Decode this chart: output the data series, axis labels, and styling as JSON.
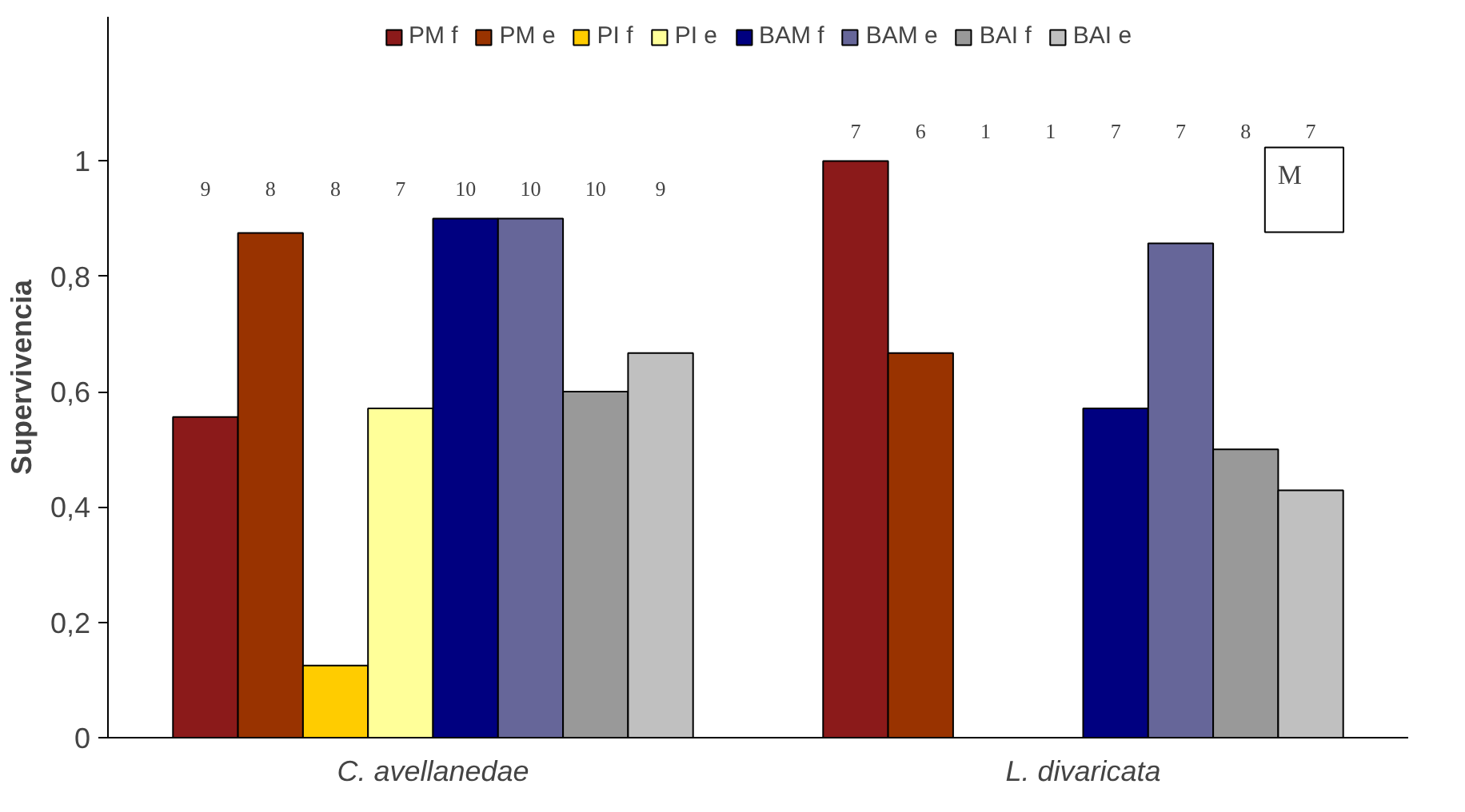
{
  "chart_data": {
    "type": "bar",
    "ylabel": "Supervivencia",
    "categories": [
      "C. avellanedae",
      "L. divaricata"
    ],
    "series": [
      {
        "name": "PM f",
        "color": "#8b1a1a",
        "values": [
          0.556,
          1.0
        ]
      },
      {
        "name": "PM e",
        "color": "#993300",
        "values": [
          0.875,
          0.667
        ]
      },
      {
        "name": "PI f",
        "color": "#ffcc00",
        "values": [
          0.125,
          null
        ]
      },
      {
        "name": "PI e",
        "color": "#ffff99",
        "values": [
          0.571,
          null
        ]
      },
      {
        "name": "BAM f",
        "color": "#000080",
        "values": [
          0.9,
          0.571
        ]
      },
      {
        "name": "BAM e",
        "color": "#666699",
        "values": [
          0.9,
          0.857
        ]
      },
      {
        "name": "BAI f",
        "color": "#999999",
        "values": [
          0.6,
          0.5
        ]
      },
      {
        "name": "BAI e",
        "color": "#c0c0c0",
        "values": [
          0.667,
          0.429
        ]
      }
    ],
    "ylim": [
      0,
      1.25
    ],
    "yticks": [
      0,
      {
        "value": 0.2,
        "label": "0,2"
      },
      {
        "value": 0.4,
        "label": "0,4"
      },
      {
        "value": 0.6,
        "label": "0,6"
      },
      {
        "value": 0.8,
        "label": "0,8"
      },
      1
    ],
    "grid": false,
    "legend": "top",
    "annotations": [
      "9",
      "8",
      "8",
      "7",
      "10",
      "10",
      "10",
      "9",
      "7",
      "6",
      "1",
      "1",
      "7",
      "7",
      "8",
      "7",
      "M"
    ]
  }
}
